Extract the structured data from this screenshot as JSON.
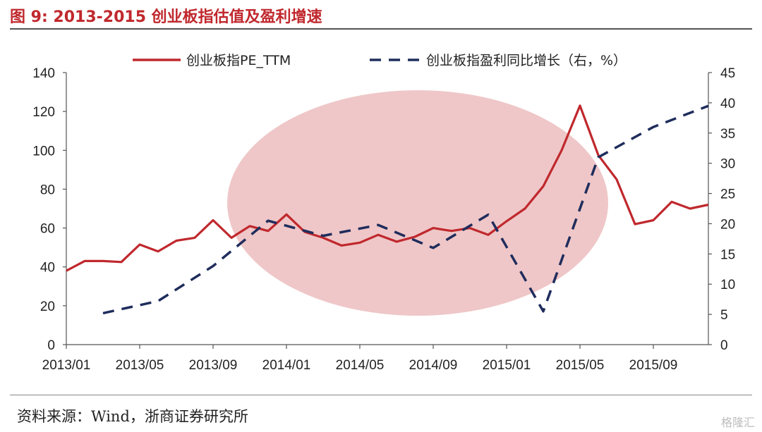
{
  "header": {
    "title": "图  9: 2013-2015 创业板指估值及盈利增速"
  },
  "footer": {
    "source": "资料来源：Wind，浙商证券研究所",
    "watermark": "格隆汇"
  },
  "colors": {
    "title": "#c0282d",
    "pe": "#c0282d",
    "growth": "#1f2d5c",
    "highlight": "#e9b4b6"
  },
  "chart_data": {
    "type": "line",
    "x_labels": [
      "2013/01",
      "2013/05",
      "2013/09",
      "2014/01",
      "2014/05",
      "2014/09",
      "2015/01",
      "2015/05",
      "2015/09"
    ],
    "y_left": {
      "min": 0,
      "max": 140,
      "ticks": [
        "0",
        "20",
        "40",
        "60",
        "80",
        "100",
        "120",
        "140"
      ]
    },
    "y_right": {
      "min": 0,
      "max": 45,
      "ticks": [
        "0",
        "5",
        "10",
        "15",
        "20",
        "25",
        "30",
        "35",
        "40",
        "45"
      ]
    },
    "legend": {
      "position": "top",
      "pe_label": "创业板指PE_TTM",
      "growth_label": "创业板指盈利同比增长（右，%）"
    },
    "annotation": "shaded ellipse highlighting 2013/09 – 2015/06",
    "series": [
      {
        "name": "创业板指PE_TTM",
        "axis": "left",
        "style": "solid",
        "x": [
          "2013/01",
          "2013/02",
          "2013/03",
          "2013/04",
          "2013/05",
          "2013/06",
          "2013/07",
          "2013/08",
          "2013/09",
          "2013/10",
          "2013/11",
          "2013/12",
          "2014/01",
          "2014/02",
          "2014/03",
          "2014/04",
          "2014/05",
          "2014/06",
          "2014/07",
          "2014/08",
          "2014/09",
          "2014/10",
          "2014/11",
          "2014/12",
          "2015/01",
          "2015/02",
          "2015/03",
          "2015/04",
          "2015/05",
          "2015/06",
          "2015/07",
          "2015/08",
          "2015/09",
          "2015/10",
          "2015/11",
          "2015/12"
        ],
        "values": [
          38,
          43,
          43,
          42.5,
          51.5,
          48,
          53.5,
          55,
          64,
          55,
          61,
          58.5,
          67,
          58,
          55,
          51,
          52.5,
          56.5,
          53,
          55.5,
          60,
          58.5,
          60,
          56.5,
          63.5,
          70,
          81.5,
          100,
          123,
          97.5,
          85,
          62,
          64,
          73.5,
          70,
          72
        ]
      },
      {
        "name": "创业板指盈利同比增长（右，%）",
        "axis": "right",
        "style": "dashed",
        "x": [
          "2013/03",
          "2013/06",
          "2013/09",
          "2013/12",
          "2014/03",
          "2014/06",
          "2014/09",
          "2014/12",
          "2015/03",
          "2015/06",
          "2015/09",
          "2015/12"
        ],
        "values": [
          5.2,
          7.2,
          13,
          20.5,
          18,
          19.8,
          16,
          21.5,
          5.5,
          31,
          36,
          39.5
        ]
      }
    ]
  }
}
